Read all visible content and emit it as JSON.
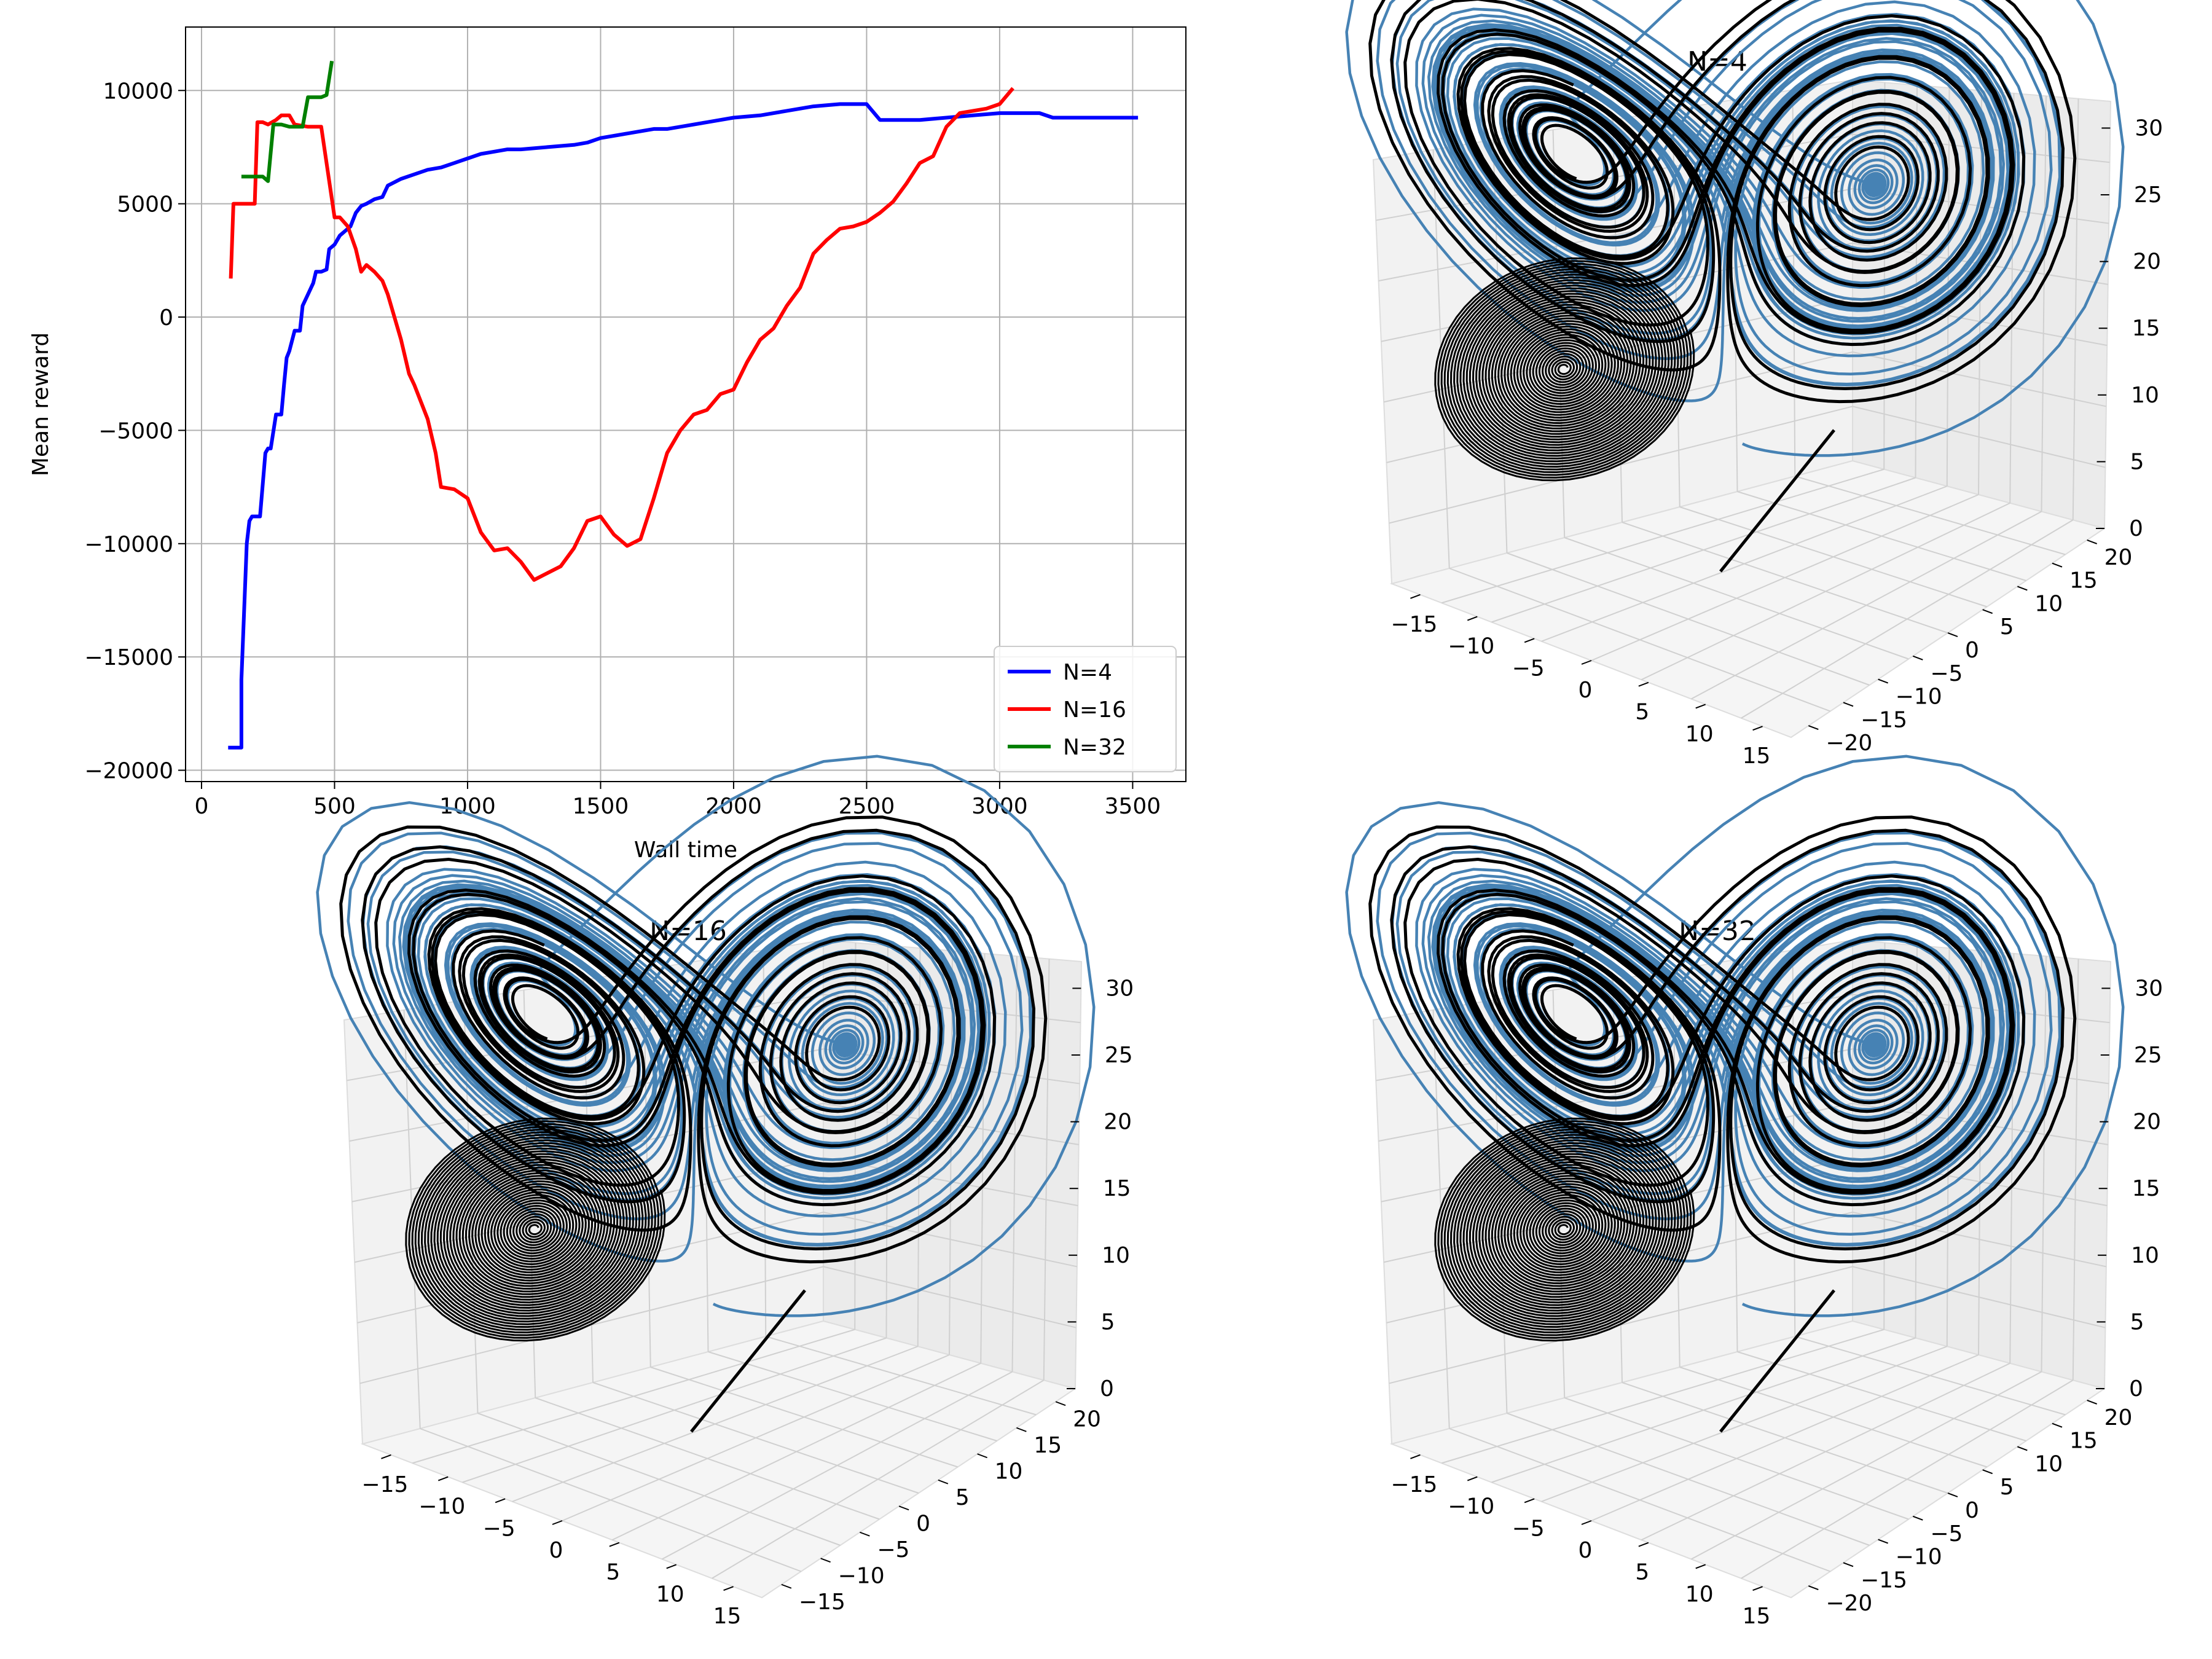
{
  "chart_data": [
    {
      "type": "line",
      "xlabel": "Wall time",
      "ylabel": "Mean reward",
      "xlim": [
        -60,
        3700
      ],
      "ylim": [
        -20500,
        12800
      ],
      "xticks": [
        0,
        500,
        1000,
        1500,
        2000,
        2500,
        3000,
        3500
      ],
      "yticks": [
        -20000,
        -15000,
        -10000,
        -5000,
        0,
        5000,
        10000
      ],
      "xtick_labels": [
        "0",
        "500",
        "1000",
        "1500",
        "2000",
        "2500",
        "3000",
        "3500"
      ],
      "ytick_labels": [
        "−20000",
        "−15000",
        "−10000",
        "−5000",
        "0",
        "5000",
        "10000"
      ],
      "grid": true,
      "legend": "lower right",
      "series": [
        {
          "name": "N=4",
          "color": "#0000ff",
          "x": [
            100,
            150,
            150,
            170,
            180,
            190,
            220,
            240,
            250,
            260,
            280,
            300,
            310,
            320,
            330,
            350,
            370,
            380,
            400,
            420,
            430,
            450,
            470,
            480,
            500,
            520,
            540,
            560,
            580,
            600,
            620,
            650,
            680,
            700,
            750,
            800,
            850,
            900,
            950,
            1000,
            1050,
            1100,
            1150,
            1200,
            1300,
            1400,
            1450,
            1500,
            1600,
            1700,
            1750,
            1800,
            1900,
            2000,
            2100,
            2200,
            2300,
            2400,
            2500,
            2550,
            2600,
            2700,
            2800,
            2900,
            3000,
            3100,
            3150,
            3200,
            3300,
            3400,
            3450,
            3500,
            3520
          ],
          "y": [
            -19000,
            -19000,
            -16000,
            -10000,
            -9000,
            -8800,
            -8800,
            -6000,
            -5800,
            -5800,
            -4300,
            -4300,
            -3000,
            -1800,
            -1500,
            -600,
            -600,
            500,
            1000,
            1500,
            2000,
            2000,
            2100,
            3000,
            3200,
            3600,
            3800,
            4000,
            4600,
            4900,
            5000,
            5200,
            5300,
            5800,
            6100,
            6300,
            6500,
            6600,
            6800,
            7000,
            7200,
            7300,
            7400,
            7400,
            7500,
            7600,
            7700,
            7900,
            8100,
            8300,
            8300,
            8400,
            8600,
            8800,
            8900,
            9100,
            9300,
            9400,
            9400,
            8700,
            8700,
            8700,
            8800,
            8900,
            9000,
            9000,
            9000,
            8800,
            8800,
            8800,
            8800,
            8800,
            8800
          ]
        },
        {
          "name": "N=16",
          "color": "#ff0000",
          "x": [
            110,
            120,
            130,
            200,
            210,
            230,
            250,
            280,
            300,
            330,
            350,
            400,
            450,
            480,
            500,
            520,
            550,
            580,
            600,
            620,
            650,
            680,
            700,
            750,
            780,
            800,
            850,
            880,
            900,
            950,
            1000,
            1050,
            1100,
            1150,
            1200,
            1250,
            1300,
            1350,
            1400,
            1450,
            1500,
            1550,
            1600,
            1650,
            1700,
            1750,
            1800,
            1850,
            1900,
            1950,
            2000,
            2050,
            2100,
            2150,
            2200,
            2250,
            2300,
            2350,
            2400,
            2450,
            2500,
            2550,
            2600,
            2650,
            2700,
            2750,
            2800,
            2850,
            2900,
            2950,
            3000,
            3050
          ],
          "y": [
            1700,
            5000,
            5000,
            5000,
            8600,
            8600,
            8500,
            8700,
            8900,
            8900,
            8500,
            8400,
            8400,
            6000,
            4400,
            4400,
            4000,
            3000,
            2000,
            2300,
            2000,
            1600,
            1000,
            -1000,
            -2500,
            -3000,
            -4500,
            -6000,
            -7500,
            -7600,
            -8000,
            -9500,
            -10300,
            -10200,
            -10800,
            -11600,
            -11300,
            -11000,
            -10200,
            -9000,
            -8800,
            -9600,
            -10100,
            -9800,
            -8000,
            -6000,
            -5000,
            -4300,
            -4100,
            -3400,
            -3200,
            -2000,
            -1000,
            -500,
            500,
            1300,
            2800,
            3400,
            3900,
            4000,
            4200,
            4600,
            5100,
            5900,
            6800,
            7100,
            8400,
            9000,
            9100,
            9200,
            9400,
            10100
          ]
        },
        {
          "name": "N=32",
          "color": "#008000",
          "x": [
            150,
            230,
            250,
            270,
            300,
            330,
            380,
            400,
            420,
            450,
            470,
            490
          ],
          "y": [
            6200,
            6200,
            6000,
            8500,
            8500,
            8400,
            8400,
            9700,
            9700,
            9700,
            9800,
            11300
          ]
        }
      ]
    },
    {
      "type": "line3d",
      "title": "N=4",
      "series": [
        {
          "color": "#4682b4"
        },
        {
          "color": "#000000"
        }
      ],
      "x_ticks": [
        "−15",
        "−10",
        "−5",
        "0",
        "5",
        "10",
        "15"
      ],
      "y_ticks": [
        "−20",
        "−15",
        "−10",
        "−5",
        "0",
        "5",
        "10",
        "15",
        "20"
      ],
      "z_ticks": [
        "0",
        "5",
        "10",
        "15",
        "20",
        "25",
        "30"
      ]
    },
    {
      "type": "line3d",
      "title": "N=16",
      "series": [
        {
          "color": "#4682b4"
        },
        {
          "color": "#000000"
        }
      ],
      "x_ticks": [
        "−15",
        "−10",
        "−5",
        "0",
        "5",
        "10",
        "15"
      ],
      "y_ticks": [
        "−15",
        "−10",
        "−5",
        "0",
        "5",
        "10",
        "15",
        "20"
      ],
      "z_ticks": [
        "0",
        "5",
        "10",
        "15",
        "20",
        "25",
        "30"
      ]
    },
    {
      "type": "line3d",
      "title": "N=32",
      "series": [
        {
          "color": "#4682b4"
        },
        {
          "color": "#000000"
        }
      ],
      "x_ticks": [
        "−15",
        "−10",
        "−5",
        "0",
        "5",
        "10",
        "15"
      ],
      "y_ticks": [
        "−20",
        "−15",
        "−10",
        "−5",
        "0",
        "5",
        "10",
        "15",
        "20"
      ],
      "z_ticks": [
        "0",
        "5",
        "10",
        "15",
        "20",
        "25",
        "30"
      ]
    }
  ]
}
